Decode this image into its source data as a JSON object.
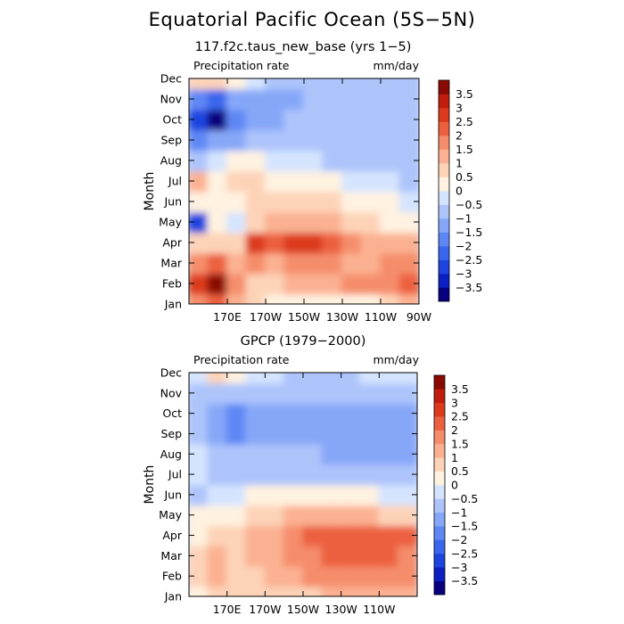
{
  "title": "Equatorial Pacific Ocean (5S−5N)",
  "colors": {
    "scale": [
      "#08007f",
      "#0c1fc2",
      "#1e44e0",
      "#3a66ee",
      "#5e87f4",
      "#86a7f8",
      "#adc4fb",
      "#d5e4fe",
      "#fff2e0",
      "#fdd3b8",
      "#fbb191",
      "#f58d6b",
      "#ec6040",
      "#dc3a1c",
      "#c11d0d",
      "#8a0a04"
    ]
  },
  "chart_data": [
    {
      "type": "heatmap",
      "title": "117.f2c.taus_new_base (yrs 1−5)",
      "left_label": "Precipitation rate",
      "right_label": "mm/day",
      "ylabel": "Month",
      "xlabel": "",
      "y_categories": [
        "Jan",
        "Feb",
        "Mar",
        "Apr",
        "May",
        "Jun",
        "Jul",
        "Aug",
        "Sep",
        "Oct",
        "Nov",
        "Dec"
      ],
      "x_ticks": [
        "170E",
        "170W",
        "150W",
        "130W",
        "110W",
        "90W"
      ],
      "xlim": [
        "150E",
        "90W"
      ],
      "colorbar_labels": [
        "3.5",
        "3",
        "2.5",
        "2",
        "1.5",
        "1",
        "0.5",
        "0",
        "−0.5",
        "−1",
        "−1.5",
        "−2",
        "−2.5",
        "−3",
        "−3.5"
      ],
      "colorbar_levels": [
        -3.5,
        -3,
        -2.5,
        -2,
        -1.5,
        -1,
        -0.5,
        0,
        0.5,
        1,
        1.5,
        2,
        2.5,
        3,
        3.5
      ],
      "grid_lon_east": [
        155,
        165,
        175,
        185,
        195,
        205,
        215,
        225,
        235,
        245,
        255,
        265
      ],
      "values": [
        [
          1.5,
          2.0,
          1.0,
          0.5,
          0.3,
          0.3,
          0.2,
          0.2,
          0.2,
          0.3,
          0.7,
          1.2
        ],
        [
          2.5,
          3.5,
          1.5,
          0.8,
          0.8,
          1.0,
          1.2,
          1.4,
          1.5,
          1.6,
          1.8,
          2.0
        ],
        [
          1.5,
          2.0,
          1.2,
          1.5,
          1.3,
          1.6,
          1.7,
          1.5,
          1.4,
          1.3,
          1.5,
          1.6
        ],
        [
          0.7,
          0.7,
          0.5,
          2.5,
          2.0,
          2.5,
          2.6,
          2.3,
          1.8,
          1.4,
          1.2,
          1.3
        ],
        [
          -2.8,
          0.2,
          -0.5,
          0.8,
          1.0,
          1.2,
          1.3,
          1.1,
          0.8,
          0.6,
          0.4,
          0.3
        ],
        [
          0.4,
          0.3,
          0.2,
          0.5,
          0.5,
          0.6,
          0.6,
          0.5,
          0.3,
          0.2,
          0.1,
          -0.3
        ],
        [
          1.2,
          0.2,
          0.8,
          0.6,
          0.4,
          0.3,
          0.3,
          0.1,
          -0.1,
          -0.2,
          -0.4,
          -0.6
        ],
        [
          -0.8,
          -0.3,
          0.2,
          0.2,
          -0.3,
          -0.4,
          -0.5,
          -0.6,
          -0.6,
          -0.7,
          -0.8,
          -0.9
        ],
        [
          -2.0,
          -1.5,
          -1.2,
          -0.8,
          -0.8,
          -0.9,
          -0.9,
          -1.0,
          -1.0,
          -0.9,
          -0.9,
          -1.0
        ],
        [
          -2.8,
          -3.6,
          -2.0,
          -1.3,
          -1.2,
          -1.0,
          -1.0,
          -1.0,
          -1.0,
          -0.9,
          -0.9,
          -1.0
        ],
        [
          -2.0,
          -2.5,
          -1.5,
          -1.2,
          -1.3,
          -1.2,
          -1.0,
          -1.0,
          -1.0,
          -0.9,
          -0.9,
          -1.0
        ],
        [
          0.5,
          0.6,
          0.3,
          -0.3,
          -0.8,
          -1.0,
          -1.0,
          -0.9,
          -0.9,
          -0.9,
          -0.9,
          -0.9
        ]
      ]
    },
    {
      "type": "heatmap",
      "title": "GPCP (1979−2000)",
      "left_label": "Precipitation rate",
      "right_label": "mm/day",
      "ylabel": "Month",
      "xlabel": "",
      "y_categories": [
        "Jan",
        "Feb",
        "Mar",
        "Apr",
        "May",
        "Jun",
        "Jul",
        "Aug",
        "Sep",
        "Oct",
        "Nov",
        "Dec"
      ],
      "x_ticks": [
        "170E",
        "170W",
        "150W",
        "130W",
        "110W"
      ],
      "xlim": [
        "150E",
        "90W"
      ],
      "colorbar_labels": [
        "3.5",
        "3",
        "2.5",
        "2",
        "1.5",
        "1",
        "0.5",
        "0",
        "−0.5",
        "−1",
        "−1.5",
        "−2",
        "−2.5",
        "−3",
        "−3.5"
      ],
      "colorbar_levels": [
        -3.5,
        -3,
        -2.5,
        -2,
        -1.5,
        -1,
        -0.5,
        0,
        0.5,
        1,
        1.5,
        2,
        2.5,
        3,
        3.5
      ],
      "grid_lon_east": [
        155,
        165,
        175,
        185,
        195,
        205,
        215,
        225,
        235,
        245,
        255,
        265
      ],
      "values": [
        [
          0.4,
          0.8,
          0.6,
          0.6,
          0.7,
          0.8,
          0.9,
          1.0,
          1.0,
          1.0,
          1.0,
          1.0
        ],
        [
          0.6,
          1.2,
          0.8,
          0.9,
          1.1,
          1.3,
          1.6,
          1.7,
          1.7,
          1.7,
          1.6,
          1.5
        ],
        [
          0.7,
          1.1,
          0.9,
          1.2,
          1.3,
          1.6,
          1.9,
          2.1,
          2.2,
          2.1,
          2.0,
          1.9
        ],
        [
          0.4,
          0.5,
          0.6,
          1.2,
          1.3,
          1.6,
          2.1,
          2.2,
          2.2,
          2.2,
          2.1,
          2.0
        ],
        [
          0.1,
          0.2,
          0.4,
          0.6,
          0.8,
          1.0,
          1.1,
          1.1,
          1.1,
          1.0,
          0.9,
          0.9
        ],
        [
          -0.6,
          -0.2,
          -0.1,
          0.0,
          0.2,
          0.3,
          0.3,
          0.2,
          0.1,
          0.0,
          -0.1,
          -0.1
        ],
        [
          -0.4,
          -0.7,
          -0.9,
          -0.7,
          -0.7,
          -0.6,
          -0.6,
          -0.6,
          -0.7,
          -0.7,
          -0.8,
          -0.8
        ],
        [
          -0.4,
          -0.8,
          -1.0,
          -0.9,
          -0.9,
          -1.0,
          -1.0,
          -1.1,
          -1.1,
          -1.1,
          -1.1,
          -1.1
        ],
        [
          -1.0,
          -1.3,
          -1.6,
          -1.2,
          -1.1,
          -1.2,
          -1.4,
          -1.5,
          -1.5,
          -1.4,
          -1.3,
          -1.3
        ],
        [
          -1.0,
          -1.1,
          -1.6,
          -1.3,
          -1.1,
          -1.3,
          -1.5,
          -1.5,
          -1.4,
          -1.3,
          -1.2,
          -1.2
        ],
        [
          -0.6,
          -0.9,
          -1.0,
          -0.9,
          -0.8,
          -0.8,
          -0.9,
          -0.9,
          -0.9,
          -0.9,
          -0.8,
          -0.7
        ],
        [
          -0.3,
          0.5,
          0.3,
          -0.3,
          -0.5,
          -0.6,
          -0.6,
          -0.6,
          -0.6,
          -0.5,
          -0.4,
          -0.3
        ]
      ]
    }
  ]
}
